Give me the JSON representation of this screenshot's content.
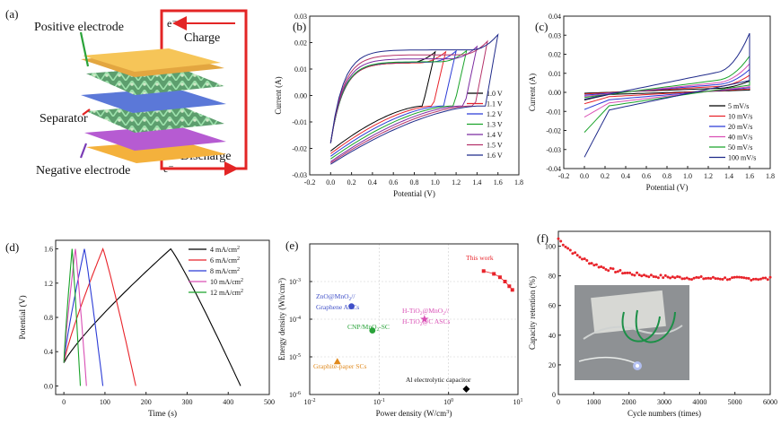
{
  "figure": {
    "labels": [
      "(a)",
      "(b)",
      "(c)",
      "(d)",
      "(e)",
      "(f)"
    ]
  },
  "schematic": {
    "positive_electrode": "Positive electrode",
    "separator": "Separator",
    "negative_electrode": "Negative electrode",
    "charge": "Charge",
    "discharge": "Discharge",
    "electron": "e⁻",
    "colors": {
      "circuit": "#e32525",
      "top_plate": "#f4b13c",
      "separator": "#5b78d8",
      "bottom_plate": "#b65bd2",
      "mesh": "#74c98a"
    }
  },
  "chart_data": [
    {
      "id": "b",
      "type": "line",
      "xlabel": "Potential (V)",
      "ylabel": "Current (A)",
      "xlim": [
        -0.2,
        1.8
      ],
      "ylim": [
        -0.03,
        0.03
      ],
      "xticks": [
        "-0.2",
        "0.0",
        "0.2",
        "0.4",
        "0.6",
        "0.8",
        "1.0",
        "1.2",
        "1.4",
        "1.6",
        "1.8"
      ],
      "yticks": [
        "-0.03",
        "-0.02",
        "-0.01",
        "0.00",
        "0.01",
        "0.02",
        "0.03"
      ],
      "legend_position": "bottom-right",
      "series": [
        {
          "name": "1.0 V",
          "color": "#000000",
          "vmax": 1.0,
          "imax": 0.0165,
          "imin": -0.021
        },
        {
          "name": "1.1 V",
          "color": "#e8232a",
          "vmax": 1.1,
          "imax": 0.0165,
          "imin": -0.022
        },
        {
          "name": "1.2 V",
          "color": "#2b3bd6",
          "vmax": 1.2,
          "imax": 0.0168,
          "imin": -0.023
        },
        {
          "name": "1.3 V",
          "color": "#1aa32a",
          "vmax": 1.3,
          "imax": 0.017,
          "imin": -0.024
        },
        {
          "name": "1.4 V",
          "color": "#7b2aa0",
          "vmax": 1.4,
          "imax": 0.0185,
          "imin": -0.025
        },
        {
          "name": "1.5 V",
          "color": "#b5336a",
          "vmax": 1.5,
          "imax": 0.0205,
          "imin": -0.0255
        },
        {
          "name": "1.6 V",
          "color": "#1f2a8a",
          "vmax": 1.6,
          "imax": 0.023,
          "imin": -0.026
        }
      ]
    },
    {
      "id": "c",
      "type": "line",
      "xlabel": "Potential (V)",
      "ylabel": "Current (A)",
      "xlim": [
        -0.2,
        1.8
      ],
      "ylim": [
        -0.04,
        0.04
      ],
      "xticks": [
        "-0.2",
        "0.0",
        "0.2",
        "0.4",
        "0.6",
        "0.8",
        "1.0",
        "1.2",
        "1.4",
        "1.6",
        "1.8"
      ],
      "yticks": [
        "-0.04",
        "-0.03",
        "-0.02",
        "-0.01",
        "0.00",
        "0.01",
        "0.02",
        "0.03",
        "0.04"
      ],
      "legend_position": "bottom-right",
      "series": [
        {
          "name": "5 mV/s",
          "color": "#000000",
          "imax": 0.006,
          "imin": -0.0015,
          "ineg0": -0.004
        },
        {
          "name": "10 mV/s",
          "color": "#e8232a",
          "imax": 0.009,
          "imin": -0.003,
          "ineg0": -0.006
        },
        {
          "name": "20 mV/s",
          "color": "#2b3bd6",
          "imax": 0.012,
          "imin": -0.005,
          "ineg0": -0.009
        },
        {
          "name": "40 mV/s",
          "color": "#d94fb5",
          "imax": 0.015,
          "imin": -0.007,
          "ineg0": -0.013
        },
        {
          "name": "50 mV/s",
          "color": "#1aa32a",
          "imax": 0.019,
          "imin": -0.009,
          "ineg0": -0.021
        },
        {
          "name": "100 mV/s",
          "color": "#1f2a8a",
          "imax": 0.031,
          "imin": -0.012,
          "ineg0": -0.034
        }
      ]
    },
    {
      "id": "d",
      "type": "line",
      "xlabel": "Time (s)",
      "ylabel": "Potential (V)",
      "xlim": [
        -20,
        500
      ],
      "ylim": [
        -0.1,
        1.7
      ],
      "xticks": [
        "0",
        "100",
        "200",
        "300",
        "400",
        "500"
      ],
      "yticks": [
        "0.0",
        "0.4",
        "0.8",
        "1.2",
        "1.6"
      ],
      "legend_position": "top-right",
      "series": [
        {
          "name": "4 mA/cm2",
          "label_main": "4 mA/cm",
          "sup": "2",
          "color": "#000000",
          "t_peak": 260,
          "t_end": 430
        },
        {
          "name": "6 mA/cm2",
          "label_main": "6 mA/cm",
          "sup": "2",
          "color": "#e8232a",
          "t_peak": 95,
          "t_end": 175
        },
        {
          "name": "8 mA/cm2",
          "label_main": "8 mA/cm",
          "sup": "2",
          "color": "#2b3bd6",
          "t_peak": 50,
          "t_end": 95
        },
        {
          "name": "10 mA/cm2",
          "label_main": "10 mA/cm",
          "sup": "2",
          "color": "#d94fb5",
          "t_peak": 28,
          "t_end": 55
        },
        {
          "name": "12 mA/cm2",
          "label_main": "12 mA/cm",
          "sup": "2",
          "color": "#1aa32a",
          "t_peak": 20,
          "t_end": 40
        }
      ]
    },
    {
      "id": "e",
      "type": "scatter",
      "xlabel": "Power density (W/cm",
      "xlabel_sup": "3",
      "xlabel_end": ")",
      "ylabel": "Energy density (Wh/cm",
      "ylabel_sup": "3",
      "ylabel_end": ")",
      "xscale": "log",
      "yscale": "log",
      "xlim": [
        0.01,
        10
      ],
      "ylim": [
        1e-06,
        0.01
      ],
      "xtick_exps": [
        "-2",
        "-1",
        "0",
        "1"
      ],
      "ytick_exps": [
        "-6",
        "-5",
        "-4",
        "-3"
      ],
      "points": [
        {
          "name": "ZnO@MnO2//Graphene ASCs",
          "x": 0.04,
          "y": 0.00022,
          "color": "#4050c8",
          "marker": "circle"
        },
        {
          "name": "CNP/MnO2-SC",
          "x": 0.08,
          "y": 5e-05,
          "color": "#2aa33a",
          "marker": "circle"
        },
        {
          "name": "H-TiO2@MnO2//H-TiO2@C ASCs",
          "x": 0.45,
          "y": 0.0001,
          "color": "#d94fb5",
          "marker": "star"
        },
        {
          "name": "Graphite-paper SCs",
          "x": 0.025,
          "y": 7.5e-06,
          "color": "#e08a1e",
          "marker": "triangle"
        },
        {
          "name": "Al electrolytic capacitor",
          "x": 1.8,
          "y": 1.4e-06,
          "color": "#000000",
          "marker": "diamond"
        }
      ],
      "this_work": {
        "label": "This work",
        "color": "#e8232a",
        "x": [
          3.2,
          4.5,
          5.5,
          6.5,
          7.5,
          8.3
        ],
        "y": [
          0.0019,
          0.0016,
          0.0013,
          0.001,
          0.00075,
          0.0006
        ]
      },
      "annotations": {
        "zno_line1": "ZnO@MnO",
        "zno_sub": "2",
        "zno_tail": "//",
        "zno_line2": "Graphene ASCs",
        "cnp_main": "CNP/MnO",
        "cnp_sub": "2",
        "cnp_tail": "-SC",
        "htio_line1_a": "H-TiO",
        "htio_sub_1": "2",
        "htio_line1_b": "@MnO",
        "htio_sub_2": "2",
        "htio_line1_c": "//",
        "htio_line2_a": "H-TiO",
        "htio_sub_3": "2",
        "htio_line2_b": "@C ASCs",
        "graphite": "Graphite-paper SCs",
        "al": "Al electrolytic capacitor",
        "this_work": "This work"
      }
    },
    {
      "id": "f",
      "type": "scatter",
      "xlabel": "Cycle numbers (times)",
      "ylabel": "Capacity retention (%)",
      "xlim": [
        0,
        6000
      ],
      "ylim": [
        0,
        110
      ],
      "xticks": [
        "0",
        "1000",
        "2000",
        "3000",
        "4000",
        "5000",
        "6000"
      ],
      "yticks": [
        "0",
        "20",
        "40",
        "60",
        "80",
        "100"
      ],
      "color": "#e8232a",
      "start": 105,
      "plateau": 78,
      "decay_cycles": 900,
      "n_points": 90,
      "inset": "photo of flexible device lighting a blue LED"
    }
  ]
}
